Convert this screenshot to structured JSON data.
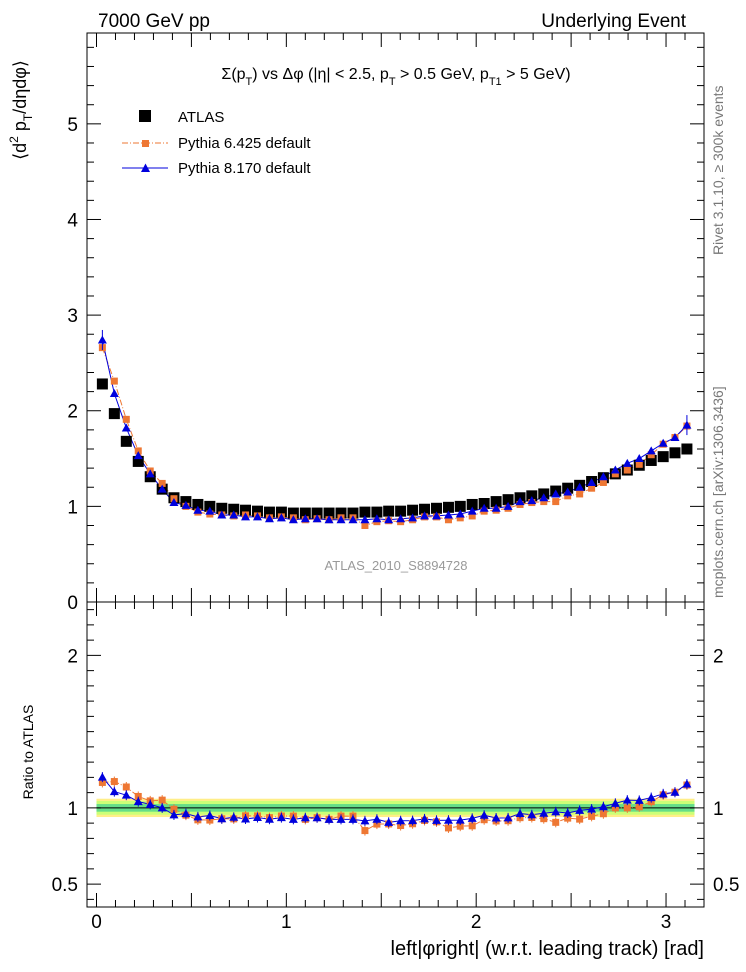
{
  "header": {
    "left_title": "7000 GeV pp",
    "right_title": "Underlying Event"
  },
  "side_text": {
    "rivet": "Rivet 3.1.10, ≥ 300k events",
    "mcplots": "mcplots.cern.ch [arXiv:1306.3436]"
  },
  "plot_title": "Σ(p_T) vs Δφ (|η| < 2.5, p_T > 0.5 GeV, p_T1 > 5 GeV)",
  "watermark": "ATLAS_2010_S8894728",
  "colors": {
    "atlas": "#000000",
    "pythia6": "#ee7733",
    "pythia8": "#0000dd",
    "band_inner": "#66dd88",
    "band_mid": "#ccff77",
    "band_outer": "#ffee88"
  },
  "chart_data": [
    {
      "type": "scatter",
      "title": "Σ(p_T) vs Δφ (|η| < 2.5, p_T > 0.5 GeV, p_T1 > 5 GeV)",
      "xlabel": "",
      "ylabel": "⟨d² p_T/dηdφ⟩",
      "xlim": [
        -0.05,
        3.2
      ],
      "ylim": [
        0,
        5.95
      ],
      "yticks": [
        0,
        1,
        2,
        3,
        4,
        5
      ],
      "legend": {
        "placement": "top-left",
        "entries": [
          {
            "key": "atlas",
            "label": "ATLAS"
          },
          {
            "key": "pythia6",
            "label": "Pythia 6.425 default"
          },
          {
            "key": "pythia8",
            "label": "Pythia 8.170 default"
          }
        ]
      },
      "x": [
        0.031,
        0.094,
        0.157,
        0.22,
        0.283,
        0.346,
        0.408,
        0.471,
        0.534,
        0.597,
        0.66,
        0.723,
        0.785,
        0.848,
        0.911,
        0.974,
        1.037,
        1.1,
        1.162,
        1.225,
        1.288,
        1.351,
        1.414,
        1.477,
        1.539,
        1.602,
        1.665,
        1.728,
        1.791,
        1.854,
        1.916,
        1.979,
        2.042,
        2.105,
        2.168,
        2.231,
        2.293,
        2.356,
        2.419,
        2.482,
        2.545,
        2.608,
        2.67,
        2.733,
        2.796,
        2.859,
        2.922,
        2.985,
        3.047,
        3.11
      ],
      "series": [
        {
          "name": "ATLAS",
          "values": [
            2.28,
            1.97,
            1.68,
            1.47,
            1.31,
            1.18,
            1.09,
            1.05,
            1.02,
            1.0,
            0.98,
            0.97,
            0.96,
            0.95,
            0.94,
            0.94,
            0.93,
            0.93,
            0.93,
            0.93,
            0.93,
            0.93,
            0.94,
            0.94,
            0.95,
            0.95,
            0.96,
            0.97,
            0.98,
            0.99,
            1.0,
            1.02,
            1.03,
            1.05,
            1.07,
            1.09,
            1.11,
            1.13,
            1.16,
            1.19,
            1.22,
            1.26,
            1.3,
            1.34,
            1.38,
            1.43,
            1.48,
            1.52,
            1.56,
            1.6
          ]
        },
        {
          "name": "Pythia 6.425 default",
          "values": [
            2.66,
            2.31,
            1.91,
            1.58,
            1.37,
            1.24,
            1.08,
            1.0,
            0.94,
            0.92,
            0.91,
            0.9,
            0.91,
            0.9,
            0.88,
            0.89,
            0.88,
            0.86,
            0.87,
            0.86,
            0.88,
            0.88,
            0.8,
            0.84,
            0.85,
            0.84,
            0.86,
            0.89,
            0.89,
            0.86,
            0.88,
            0.9,
            0.95,
            0.96,
            0.98,
            1.02,
            1.04,
            1.05,
            1.05,
            1.11,
            1.13,
            1.19,
            1.25,
            1.34,
            1.38,
            1.44,
            1.54,
            1.65,
            1.72,
            1.84
          ]
        },
        {
          "name": "Pythia 8.170 default",
          "values": [
            2.74,
            2.18,
            1.82,
            1.53,
            1.34,
            1.18,
            1.04,
            1.01,
            0.96,
            0.95,
            0.91,
            0.91,
            0.89,
            0.89,
            0.87,
            0.88,
            0.86,
            0.87,
            0.87,
            0.86,
            0.86,
            0.86,
            0.86,
            0.87,
            0.86,
            0.87,
            0.88,
            0.9,
            0.9,
            0.91,
            0.92,
            0.95,
            0.98,
            0.98,
            1.0,
            1.05,
            1.06,
            1.09,
            1.13,
            1.15,
            1.2,
            1.25,
            1.31,
            1.38,
            1.45,
            1.5,
            1.58,
            1.66,
            1.72,
            1.85
          ]
        }
      ]
    },
    {
      "type": "scatter",
      "title": "",
      "xlabel": "left|φright| (w.r.t. leading track) [rad]",
      "ylabel": "Ratio to ATLAS",
      "xlim": [
        -0.05,
        3.2
      ],
      "ylim": [
        0.35,
        2.35
      ],
      "yticks": [
        0.5,
        1,
        2
      ],
      "ytick_labels": [
        "0.5",
        "1",
        "2"
      ],
      "xticks": [
        0,
        1,
        2,
        3
      ],
      "xtick_labels": [
        "0",
        "1",
        "2",
        "3"
      ],
      "band": {
        "inner": [
          0.975,
          1.025
        ],
        "mid": [
          0.955,
          1.045
        ],
        "outer": [
          0.94,
          1.06
        ]
      }
    }
  ]
}
